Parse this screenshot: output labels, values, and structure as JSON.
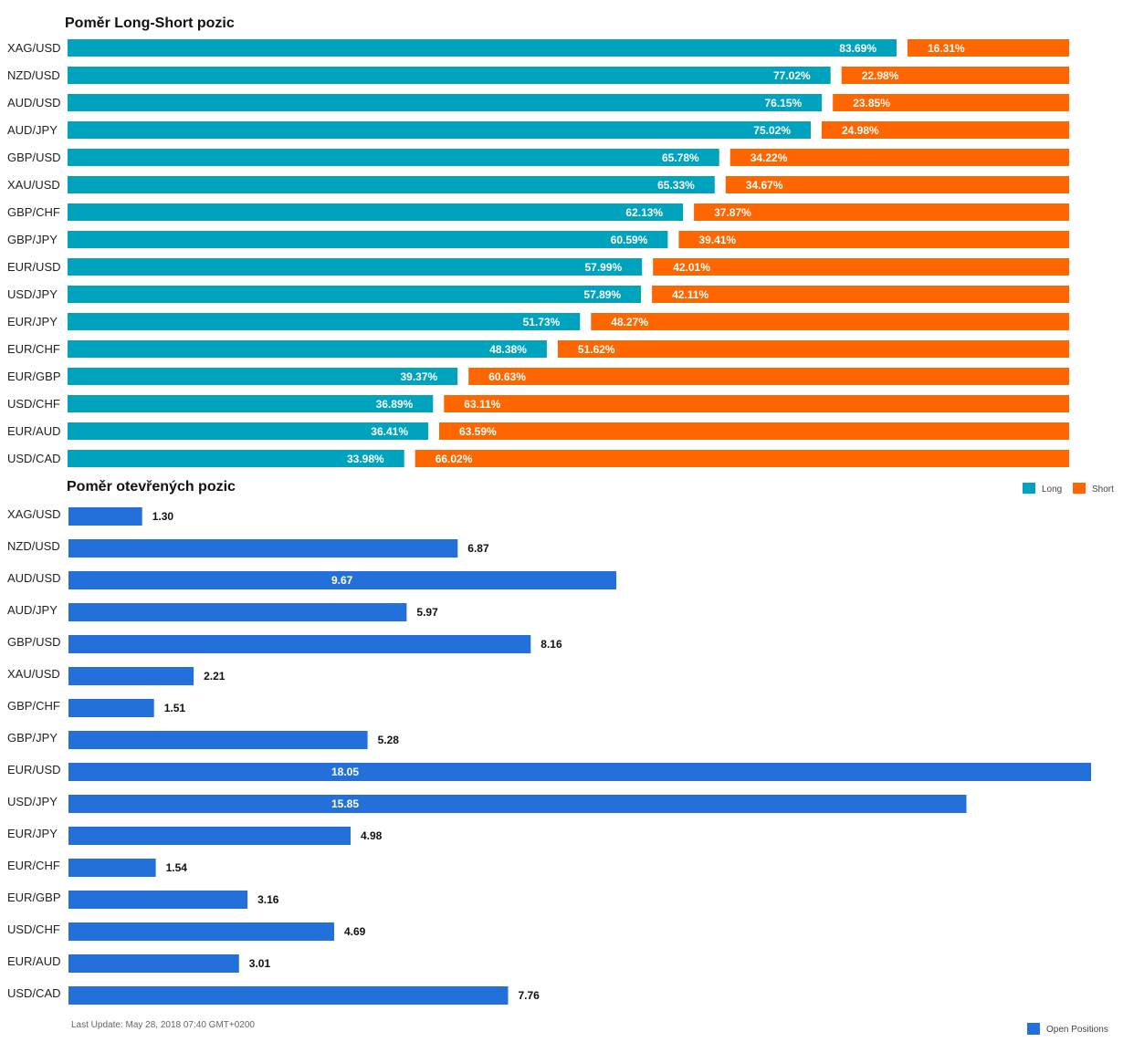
{
  "colors": {
    "long": "#00A3BD",
    "short": "#FF6600",
    "open": "#2470DA"
  },
  "chart_data": [
    {
      "type": "bar",
      "stacked": true,
      "orientation": "horizontal",
      "title": "Poměr Long-Short pozic",
      "categories": [
        "XAG/USD",
        "NZD/USD",
        "AUD/USD",
        "AUD/JPY",
        "GBP/USD",
        "XAU/USD",
        "GBP/CHF",
        "GBP/JPY",
        "EUR/USD",
        "USD/JPY",
        "EUR/JPY",
        "EUR/CHF",
        "EUR/GBP",
        "USD/CHF",
        "EUR/AUD",
        "USD/CAD"
      ],
      "series": [
        {
          "name": "Long",
          "values": [
            83.69,
            77.02,
            76.15,
            75.02,
            65.78,
            65.33,
            62.13,
            60.59,
            57.99,
            57.89,
            51.73,
            48.38,
            39.37,
            36.89,
            36.41,
            33.98
          ]
        },
        {
          "name": "Short",
          "values": [
            16.31,
            22.98,
            23.85,
            24.98,
            34.22,
            34.67,
            37.87,
            39.41,
            42.01,
            42.11,
            48.27,
            51.62,
            60.63,
            63.11,
            63.59,
            66.02
          ]
        }
      ],
      "labels": {
        "long": [
          "83.69%",
          "77.02%",
          "76.15%",
          "75.02%",
          "65.78%",
          "65.33%",
          "62.13%",
          "60.59%",
          "57.99%",
          "57.89%",
          "51.73%",
          "48.38%",
          "39.37%",
          "36.89%",
          "36.41%",
          "33.98%"
        ],
        "short": [
          "16.31%",
          "22.98%",
          "23.85%",
          "24.98%",
          "34.22%",
          "34.67%",
          "37.87%",
          "39.41%",
          "42.01%",
          "42.11%",
          "48.27%",
          "51.62%",
          "60.63%",
          "63.11%",
          "63.59%",
          "66.02%"
        ]
      },
      "xlim": [
        0,
        100
      ],
      "legend": {
        "position": "right",
        "items": [
          "Long",
          "Short"
        ]
      }
    },
    {
      "type": "bar",
      "orientation": "horizontal",
      "title": "Poměr otevřených pozic",
      "categories": [
        "XAG/USD",
        "NZD/USD",
        "AUD/USD",
        "AUD/JPY",
        "GBP/USD",
        "XAU/USD",
        "GBP/CHF",
        "GBP/JPY",
        "EUR/USD",
        "USD/JPY",
        "EUR/JPY",
        "EUR/CHF",
        "EUR/GBP",
        "USD/CHF",
        "EUR/AUD",
        "USD/CAD"
      ],
      "series": [
        {
          "name": "Open Positions",
          "values": [
            1.3,
            6.87,
            9.67,
            5.97,
            8.16,
            2.21,
            1.51,
            5.28,
            18.05,
            15.85,
            4.98,
            1.54,
            3.16,
            4.69,
            3.01,
            7.76
          ]
        }
      ],
      "labels": [
        "1.30",
        "6.87",
        "9.67",
        "5.97",
        "8.16",
        "2.21",
        "1.51",
        "5.28",
        "18.05",
        "15.85",
        "4.98",
        "1.54",
        "3.16",
        "4.69",
        "3.01",
        "7.76"
      ],
      "xlim": [
        0,
        18.05
      ],
      "legend": {
        "position": "bottom-right",
        "items": [
          "Open Positions"
        ]
      }
    }
  ],
  "footer": {
    "last_update": "Last Update: May 28, 2018 07:40 GMT+0200"
  }
}
